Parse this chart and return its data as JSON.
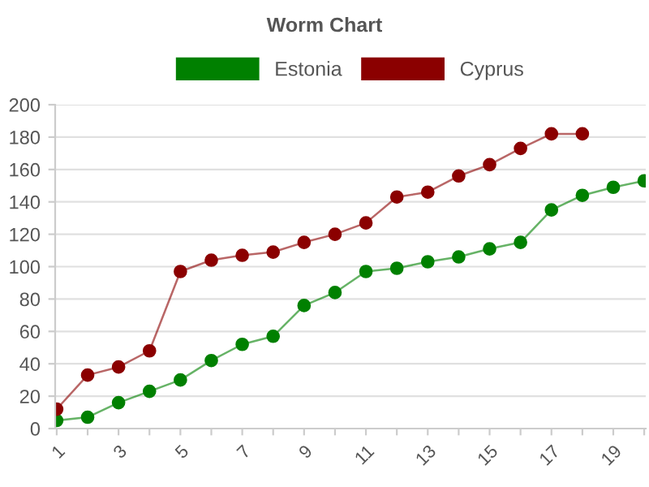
{
  "chart_data": {
    "type": "line",
    "title": "Worm Chart",
    "categories": [
      "1",
      null,
      "3",
      null,
      "5",
      null,
      "7",
      null,
      "9",
      null,
      "11",
      null,
      "13",
      null,
      "15",
      null,
      "17",
      null,
      "19",
      null
    ],
    "series": [
      {
        "name": "Estonia",
        "color": "#008000",
        "values": [
          5,
          7,
          16,
          23,
          30,
          42,
          52,
          57,
          76,
          84,
          97,
          99,
          103,
          106,
          111,
          115,
          135,
          144,
          149,
          153
        ]
      },
      {
        "name": "Cyprus",
        "color": "#8b0000",
        "values": [
          12,
          33,
          38,
          48,
          97,
          104,
          107,
          109,
          115,
          120,
          127,
          143,
          146,
          156,
          163,
          173,
          182,
          182,
          null,
          null
        ]
      }
    ],
    "ylim": [
      0,
      200
    ],
    "yticks": [
      0,
      20,
      40,
      60,
      80,
      100,
      120,
      140,
      160,
      180,
      200
    ],
    "grid": "y",
    "legend": "top",
    "marker": "circle",
    "line_style": "solid"
  }
}
